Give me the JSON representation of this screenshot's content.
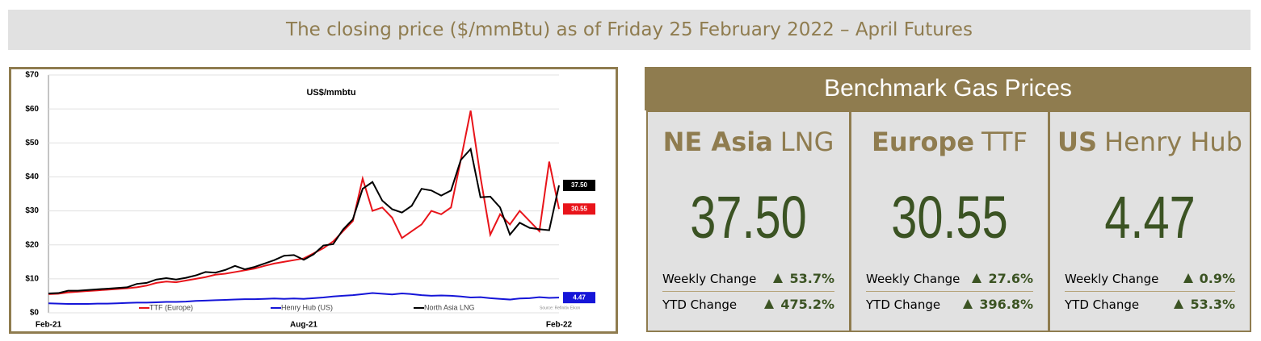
{
  "header": {
    "title": "The closing price ($/mmBtu) as of Friday 25 February 2022 – April Futures"
  },
  "chart_data": {
    "type": "line",
    "title": "US$/mmbtu",
    "source": "Source: Refinitiv Eikon",
    "categories": [
      "Feb-21",
      null,
      null,
      null,
      null,
      null,
      null,
      null,
      null,
      null,
      null,
      null,
      null,
      null,
      null,
      null,
      null,
      null,
      null,
      null,
      null,
      null,
      null,
      null,
      null,
      null,
      "Aug-21",
      null,
      null,
      null,
      null,
      null,
      null,
      null,
      null,
      null,
      null,
      null,
      null,
      null,
      null,
      null,
      null,
      null,
      null,
      null,
      null,
      null,
      null,
      null,
      null,
      null,
      "Feb-22"
    ],
    "ylim": [
      0,
      70
    ],
    "yticks": [
      {
        "value": 0,
        "label": "$0"
      },
      {
        "value": 10,
        "label": "$10"
      },
      {
        "value": 20,
        "label": "$20"
      },
      {
        "value": 30,
        "label": "$30"
      },
      {
        "value": 40,
        "label": "$40"
      },
      {
        "value": 50,
        "label": "$50"
      },
      {
        "value": 60,
        "label": "$60"
      },
      {
        "value": 70,
        "label": "$70"
      }
    ],
    "grid": true,
    "series": [
      {
        "name": "TTF (Europe)",
        "color": "#e8141a",
        "values": [
          5.5,
          5.6,
          6,
          6.2,
          6.4,
          6.6,
          6.8,
          7,
          7.2,
          7.5,
          8,
          8.8,
          9.2,
          9,
          9.5,
          10,
          10.5,
          11.2,
          11.5,
          12,
          12.5,
          13,
          13.8,
          14.5,
          15,
          15.5,
          16,
          17.5,
          19,
          21,
          24,
          27,
          39.5,
          30,
          31,
          28,
          22,
          24,
          26,
          30,
          29,
          31,
          45,
          59.5,
          40,
          23,
          29,
          26,
          30,
          27,
          24,
          44.5,
          30.55
        ],
        "value_labels": [
          null,
          null,
          null,
          null,
          null,
          null,
          null,
          null,
          null,
          null,
          null,
          null,
          null,
          null,
          null,
          null,
          null,
          null,
          null,
          null,
          null,
          null,
          null,
          null,
          null,
          null,
          null,
          null,
          null,
          null,
          null,
          null,
          null,
          null,
          null,
          null,
          null,
          null,
          null,
          null,
          null,
          null,
          null,
          null,
          null,
          null,
          null,
          null,
          null,
          null,
          null,
          null,
          "30.55"
        ]
      },
      {
        "name": "Henry Hub (US)",
        "color": "#1515d8",
        "values": [
          2.8,
          2.7,
          2.6,
          2.6,
          2.6,
          2.7,
          2.7,
          2.8,
          2.9,
          3,
          3,
          3.1,
          3.2,
          3.2,
          3.3,
          3.5,
          3.6,
          3.7,
          3.8,
          3.9,
          4,
          4,
          4.1,
          4.2,
          4.1,
          4.2,
          4.1,
          4.3,
          4.5,
          4.8,
          5,
          5.2,
          5.5,
          5.8,
          5.6,
          5.4,
          5.7,
          5.5,
          5.2,
          5,
          5.1,
          5,
          4.8,
          4.5,
          4.6,
          4.3,
          4.1,
          3.9,
          4.2,
          4.3,
          4.6,
          4.4,
          4.47
        ],
        "value_labels": [
          null,
          null,
          null,
          null,
          null,
          null,
          null,
          null,
          null,
          null,
          null,
          null,
          null,
          null,
          null,
          null,
          null,
          null,
          null,
          null,
          null,
          null,
          null,
          null,
          null,
          null,
          null,
          null,
          null,
          null,
          null,
          null,
          null,
          null,
          null,
          null,
          null,
          null,
          null,
          null,
          null,
          null,
          null,
          null,
          null,
          null,
          null,
          null,
          null,
          null,
          null,
          null,
          "4.47"
        ]
      },
      {
        "name": "North Asia LNG",
        "color": "#000000",
        "values": [
          5.7,
          5.8,
          6.5,
          6.5,
          6.7,
          6.9,
          7.1,
          7.3,
          7.5,
          8.5,
          8.8,
          9.8,
          10.2,
          9.8,
          10.3,
          11,
          12,
          11.8,
          12.6,
          13.8,
          12.8,
          13.5,
          14.5,
          15.5,
          16.8,
          17,
          15.6,
          17.2,
          19.8,
          20.2,
          24.5,
          27.5,
          36.5,
          38.5,
          33,
          30.5,
          29.5,
          31.5,
          36.5,
          36,
          34.5,
          36,
          45,
          48.2,
          34,
          34.2,
          31,
          23,
          26.5,
          25,
          24.6,
          24.3,
          37.5
        ],
        "value_labels": [
          null,
          null,
          null,
          null,
          null,
          null,
          null,
          null,
          null,
          null,
          null,
          null,
          null,
          null,
          null,
          null,
          null,
          null,
          null,
          null,
          null,
          null,
          null,
          null,
          null,
          null,
          null,
          null,
          null,
          null,
          null,
          null,
          null,
          null,
          null,
          null,
          null,
          null,
          null,
          null,
          null,
          null,
          null,
          null,
          null,
          null,
          null,
          null,
          null,
          null,
          null,
          null,
          "37.50"
        ]
      }
    ]
  },
  "benchmark": {
    "title": "Benchmark Gas Prices",
    "panels": [
      {
        "name_bold": "NE Asia",
        "name_rest": "LNG",
        "price": "37.50",
        "weekly_label": "Weekly Change",
        "weekly_change": "53.7%",
        "ytd_label": "YTD Change",
        "ytd_change": "475.2%"
      },
      {
        "name_bold": "Europe",
        "name_rest": "TTF",
        "price": "30.55",
        "weekly_label": "Weekly Change",
        "weekly_change": "27.6%",
        "ytd_label": "YTD Change",
        "ytd_change": "396.8%"
      },
      {
        "name_bold": "US",
        "name_rest": "Henry Hub",
        "price": "4.47",
        "weekly_label": "Weekly Change",
        "weekly_change": "0.9%",
        "ytd_label": "YTD Change",
        "ytd_change": "53.3%"
      }
    ]
  }
}
